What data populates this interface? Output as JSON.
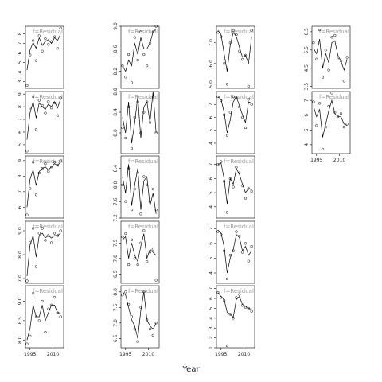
{
  "x_label": "Year",
  "chart_data": [
    {
      "type": "scatter",
      "col": 0,
      "row": 0,
      "label": "f=Residual",
      "x": [
        1993,
        1995,
        1997,
        1999,
        2001,
        2003,
        2005,
        2007,
        2009,
        2011,
        2013,
        2015
      ],
      "xlim": [
        1992,
        2017
      ],
      "ylim": [
        2.3,
        8.8
      ],
      "yticks": [
        3,
        4,
        5,
        6,
        7,
        8
      ],
      "values": [
        2.6,
        5.8,
        7.3,
        5.2,
        7.8,
        6.2,
        7.5,
        6.9,
        7.2,
        7.7,
        6.5,
        8.6
      ],
      "fit": [
        4.2,
        6.3,
        7.1,
        6.5,
        7.6,
        6.8,
        7.2,
        7.4,
        7.0,
        7.6,
        7.3,
        8.0
      ]
    },
    {
      "type": "scatter",
      "col": 0,
      "row": 1,
      "label": "f=Residual",
      "x": [
        1993,
        1995,
        1997,
        1999,
        2001,
        2003,
        2005,
        2007,
        2009,
        2011,
        2013,
        2015
      ],
      "xlim": [
        1992,
        2017
      ],
      "ylim": [
        4.3,
        9.2
      ],
      "yticks": [
        5,
        6,
        7,
        8,
        9
      ],
      "values": [
        4.5,
        7.9,
        8.8,
        6.2,
        8.5,
        8.1,
        7.5,
        8.4,
        7.9,
        8.3,
        7.3,
        8.7
      ],
      "fit": [
        5.4,
        7.5,
        8.4,
        7.1,
        8.3,
        8.0,
        7.8,
        8.2,
        8.0,
        8.4,
        7.9,
        8.6
      ]
    },
    {
      "type": "scatter",
      "col": 0,
      "row": 2,
      "label": "f=Residual",
      "x": [
        1993,
        1995,
        1997,
        1999,
        2001,
        2003,
        2005,
        2007,
        2009,
        2011,
        2013,
        2015
      ],
      "xlim": [
        1992,
        2017
      ],
      "ylim": [
        5.3,
        9.3
      ],
      "yticks": [
        6,
        7,
        8,
        9
      ],
      "values": [
        5.5,
        7.2,
        8.9,
        6.8,
        8.2,
        8.5,
        8.8,
        8.3,
        8.6,
        8.9,
        8.7,
        9.0
      ],
      "fit": [
        6.0,
        7.8,
        8.4,
        7.4,
        8.3,
        8.5,
        8.6,
        8.4,
        8.6,
        8.8,
        8.7,
        8.9
      ]
    },
    {
      "type": "scatter",
      "col": 0,
      "row": 3,
      "label": "f=Residual",
      "x": [
        1993,
        1995,
        1997,
        1999,
        2001,
        2003,
        2005,
        2007,
        2009,
        2011,
        2013,
        2015
      ],
      "xlim": [
        1992,
        2017
      ],
      "ylim": [
        6.8,
        9.4
      ],
      "yticks": [
        {
          "value": 7,
          "label": "7.0"
        },
        {
          "value": 8,
          "label": "8.0"
        },
        {
          "value": 9,
          "label": "9.0"
        }
      ],
      "values": [
        6.9,
        8.5,
        9.1,
        7.5,
        8.9,
        9.1,
        8.6,
        8.8,
        8.5,
        8.9,
        8.8,
        9.0
      ],
      "fit": [
        7.1,
        8.4,
        8.8,
        7.9,
        8.8,
        8.9,
        8.7,
        8.8,
        8.7,
        8.8,
        8.8,
        8.9
      ]
    },
    {
      "type": "scatter",
      "col": 0,
      "row": 4,
      "label": "f=Residual",
      "x": [
        1993,
        1995,
        1997,
        1999,
        2001,
        2003,
        2005,
        2007,
        2009,
        2011,
        2013,
        2015
      ],
      "xlim": [
        1992,
        2017
      ],
      "ylim": [
        7.8,
        9.4
      ],
      "yticks": [
        {
          "value": 8,
          "label": "8.0"
        },
        8.5,
        {
          "value": 9,
          "label": "9.0"
        }
      ],
      "xticks": [
        1995,
        2010
      ],
      "values": [
        7.9,
        8.1,
        9.2,
        8.6,
        8.5,
        9.0,
        8.2,
        8.8,
        8.9,
        9.1,
        8.7,
        8.6
      ],
      "fit": [
        8.0,
        8.3,
        8.9,
        8.6,
        8.6,
        8.9,
        8.5,
        8.7,
        8.9,
        8.9,
        8.7,
        8.7
      ]
    },
    {
      "type": "scatter",
      "col": 1,
      "row": 0,
      "label": "f=Residual",
      "x": [
        1993,
        1995,
        1997,
        1999,
        2001,
        2003,
        2005,
        2007,
        2009,
        2011,
        2013,
        2015
      ],
      "xlim": [
        1992,
        2017
      ],
      "ylim": [
        7.9,
        9.0
      ],
      "yticks": [
        8.2,
        8.6,
        {
          "value": 9,
          "label": "9.0"
        }
      ],
      "values": [
        8.3,
        8.1,
        8.5,
        8.0,
        8.8,
        8.4,
        8.9,
        8.5,
        8.3,
        8.7,
        8.9,
        9.0
      ],
      "fit": [
        8.3,
        8.2,
        8.4,
        8.3,
        8.7,
        8.5,
        8.8,
        8.6,
        8.6,
        8.7,
        8.9,
        8.95
      ]
    },
    {
      "type": "scatter",
      "col": 1,
      "row": 1,
      "label": "f=Residual",
      "x": [
        1993,
        1995,
        1997,
        1999,
        2001,
        2003,
        2005,
        2007,
        2009,
        2011,
        2013,
        2015
      ],
      "xlim": [
        1992,
        2017
      ],
      "ylim": [
        7.6,
        8.8
      ],
      "yticks": [
        {
          "value": 8,
          "label": "8.0"
        },
        8.4,
        8.8
      ],
      "values": [
        8.1,
        7.9,
        8.5,
        7.7,
        8.3,
        8.6,
        8.0,
        8.4,
        8.6,
        8.2,
        8.7,
        8.0
      ],
      "fit": [
        8.3,
        8.0,
        8.6,
        7.8,
        8.2,
        8.7,
        7.9,
        8.5,
        8.6,
        8.2,
        8.8,
        8.0
      ]
    },
    {
      "type": "scatter",
      "col": 1,
      "row": 2,
      "label": "f=Residual",
      "x": [
        1993,
        1995,
        1997,
        1999,
        2001,
        2003,
        2005,
        2007,
        2009,
        2011,
        2013,
        2015
      ],
      "xlim": [
        1992,
        2017
      ],
      "ylim": [
        7.2,
        8.7
      ],
      "yticks": [
        7.2,
        7.6,
        {
          "value": 8,
          "label": "8.0"
        },
        8.4
      ],
      "values": [
        8.0,
        7.6,
        8.4,
        7.4,
        7.9,
        8.3,
        7.3,
        8.2,
        8.0,
        7.6,
        7.9,
        7.4
      ],
      "fit": [
        8.2,
        7.8,
        8.5,
        7.5,
        8.0,
        8.4,
        7.4,
        8.1,
        8.2,
        7.5,
        7.8,
        7.3
      ]
    },
    {
      "type": "scatter",
      "col": 1,
      "row": 3,
      "label": "f=Residual",
      "x": [
        1993,
        1995,
        1997,
        1999,
        2001,
        2003,
        2005,
        2007,
        2009,
        2011,
        2013,
        2015
      ],
      "xlim": [
        1992,
        2017
      ],
      "ylim": [
        6.2,
        8.2
      ],
      "yticks": [
        6.5,
        {
          "value": 7,
          "label": "7.0"
        },
        7.5
      ],
      "values": [
        7.7,
        7.8,
        6.8,
        7.6,
        7.0,
        6.8,
        7.5,
        7.9,
        6.9,
        7.2,
        7.3,
        6.3
      ],
      "fit": [
        7.6,
        7.7,
        7.0,
        7.5,
        7.1,
        6.9,
        7.4,
        7.8,
        7.0,
        7.3,
        7.2,
        7.1
      ]
    },
    {
      "type": "scatter",
      "col": 1,
      "row": 4,
      "label": "f=Residual",
      "x": [
        1993,
        1995,
        1997,
        1999,
        2001,
        2003,
        2005,
        2007,
        2009,
        2011,
        2013,
        2015
      ],
      "xlim": [
        1992,
        2017
      ],
      "ylim": [
        6.2,
        8.2
      ],
      "yticks": [
        6.5,
        {
          "value": 7,
          "label": "7.0"
        },
        7.5,
        {
          "value": 8,
          "label": "8.0"
        }
      ],
      "xticks": [
        1995,
        2010
      ],
      "values": [
        7.9,
        8.0,
        7.6,
        7.2,
        6.8,
        6.4,
        7.5,
        8.0,
        7.1,
        6.8,
        6.6,
        7.0
      ],
      "fit": [
        8.0,
        7.9,
        7.5,
        7.1,
        6.9,
        6.5,
        7.4,
        8.0,
        7.1,
        6.9,
        6.8,
        7.0
      ]
    },
    {
      "type": "scatter",
      "col": 2,
      "row": 0,
      "label": "f=Residual",
      "x": [
        1993,
        1995,
        1997,
        1999,
        2001,
        2003,
        2005,
        2007,
        2009,
        2011,
        2013,
        2015
      ],
      "xlim": [
        1992,
        2017
      ],
      "ylim": [
        4.8,
        7.8
      ],
      "yticks": [
        {
          "value": 5,
          "label": "5.0"
        },
        {
          "value": 6,
          "label": "6.0"
        },
        {
          "value": 7,
          "label": "7.0"
        }
      ],
      "values": [
        7.5,
        7.3,
        6.0,
        5.0,
        7.0,
        7.6,
        7.4,
        6.6,
        6.2,
        6.4,
        4.9,
        7.6
      ],
      "fit": [
        7.6,
        7.4,
        6.5,
        5.6,
        6.9,
        7.5,
        7.3,
        6.8,
        6.3,
        6.4,
        6.0,
        7.3
      ]
    },
    {
      "type": "scatter",
      "col": 2,
      "row": 1,
      "label": "f=Residual",
      "x": [
        1993,
        1995,
        1997,
        1999,
        2001,
        2003,
        2005,
        2007,
        2009,
        2011,
        2013,
        2015
      ],
      "xlim": [
        1992,
        2017
      ],
      "ylim": [
        3.2,
        8.0
      ],
      "yticks": [
        4,
        5,
        6,
        7
      ],
      "values": [
        7.6,
        7.3,
        6.2,
        4.6,
        6.4,
        7.6,
        7.5,
        6.8,
        6.0,
        5.2,
        7.4,
        7.0
      ],
      "fit": [
        7.6,
        7.4,
        6.4,
        4.8,
        5.8,
        7.2,
        7.6,
        6.9,
        6.2,
        5.6,
        7.2,
        7.1
      ]
    },
    {
      "type": "scatter",
      "col": 2,
      "row": 2,
      "label": "f=Residual",
      "x": [
        1993,
        1995,
        1997,
        1999,
        2001,
        2003,
        2005,
        2007,
        2009,
        2011,
        2013,
        2015
      ],
      "xlim": [
        1992,
        2017
      ],
      "ylim": [
        3.2,
        7.6
      ],
      "yticks": [
        4,
        5,
        6,
        7
      ],
      "values": [
        7.0,
        7.2,
        5.8,
        3.6,
        6.0,
        5.4,
        6.8,
        6.4,
        5.5,
        4.6,
        5.3,
        5.1
      ],
      "fit": [
        7.0,
        7.1,
        6.0,
        4.2,
        6.0,
        5.6,
        6.7,
        6.3,
        5.6,
        5.0,
        5.3,
        5.2
      ]
    },
    {
      "type": "scatter",
      "col": 2,
      "row": 3,
      "label": "f=Residual",
      "x": [
        1993,
        1995,
        1997,
        1999,
        2001,
        2003,
        2005,
        2007,
        2009,
        2011,
        2013,
        2015
      ],
      "xlim": [
        1992,
        2017
      ],
      "ylim": [
        3.3,
        7.5
      ],
      "yticks": [
        4,
        5,
        6,
        7
      ],
      "values": [
        6.8,
        6.6,
        5.5,
        3.6,
        5.2,
        5.5,
        6.8,
        6.5,
        5.4,
        6.0,
        4.8,
        5.8
      ],
      "fit": [
        6.9,
        6.7,
        5.8,
        4.0,
        5.0,
        5.6,
        6.6,
        6.4,
        5.5,
        5.8,
        5.2,
        5.5
      ]
    },
    {
      "type": "scatter",
      "col": 2,
      "row": 4,
      "label": "f=Residual",
      "x": [
        1993,
        1995,
        1997,
        1999,
        2001,
        2003,
        2005,
        2007,
        2009,
        2011,
        2013,
        2015
      ],
      "xlim": [
        1992,
        2017
      ],
      "ylim": [
        1.0,
        7.3
      ],
      "yticks": [
        1,
        2,
        3,
        4,
        5,
        6,
        7
      ],
      "xticks": [
        1995,
        2010
      ],
      "values": [
        6.6,
        6.1,
        5.8,
        1.2,
        4.4,
        4.0,
        6.1,
        6.4,
        5.3,
        5.1,
        5.0,
        4.7
      ],
      "fit": [
        6.6,
        6.2,
        5.9,
        4.6,
        4.4,
        4.1,
        5.9,
        6.2,
        5.4,
        5.2,
        5.0,
        4.9
      ]
    },
    {
      "type": "scatter",
      "col": 3,
      "row": 0,
      "label": "f=Residual",
      "x": [
        1993,
        1995,
        1997,
        1999,
        2001,
        2003,
        2005,
        2007,
        2009,
        2011,
        2013,
        2015
      ],
      "xlim": [
        1992,
        2017
      ],
      "ylim": [
        3.4,
        6.8
      ],
      "yticks": [
        3.5,
        4.5,
        5.5,
        6.5
      ],
      "values": [
        5.9,
        5.0,
        6.6,
        4.0,
        5.5,
        4.4,
        6.2,
        6.3,
        5.0,
        4.9,
        3.8,
        5.1
      ],
      "fit": [
        5.6,
        5.3,
        6.1,
        4.5,
        5.3,
        4.8,
        5.9,
        6.0,
        5.2,
        4.9,
        4.4,
        5.0
      ]
    },
    {
      "type": "scatter",
      "col": 3,
      "row": 1,
      "label": "f=Residual",
      "x": [
        1993,
        1995,
        1997,
        1999,
        2001,
        2003,
        2005,
        2007,
        2009,
        2011,
        2013,
        2015
      ],
      "xlim": [
        1992,
        2017
      ],
      "ylim": [
        3.4,
        7.6
      ],
      "yticks": [
        4,
        5,
        6,
        7
      ],
      "xticks": [
        1995,
        2010
      ],
      "values": [
        6.9,
        5.3,
        6.8,
        3.7,
        5.2,
        6.6,
        7.5,
        6.2,
        5.9,
        6.1,
        5.2,
        5.4
      ],
      "fit": [
        6.6,
        5.9,
        6.4,
        4.5,
        5.4,
        6.3,
        7.0,
        6.1,
        5.9,
        5.9,
        5.4,
        5.3
      ]
    }
  ]
}
